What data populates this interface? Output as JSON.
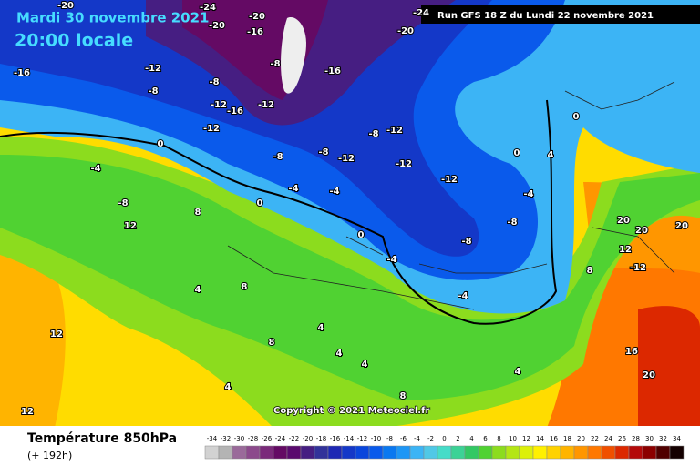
{
  "header": {
    "date": "Mardi 30 novembre 2021",
    "time": "20:00 locale",
    "run": "Run GFS 18 Z du Lundi 22 novembre 2021"
  },
  "copyright": "Copyright © 2021 Meteociel.fr",
  "legend": {
    "title": "Température 850hPa",
    "lead": "(+ 192h)",
    "scale": [
      -34,
      -32,
      -30,
      -28,
      -26,
      -24,
      -22,
      -20,
      -18,
      -16,
      -14,
      -12,
      -10,
      -8,
      -6,
      -4,
      -2,
      0,
      2,
      4,
      6,
      8,
      10,
      12,
      14,
      16,
      18,
      20,
      22,
      24,
      26,
      28,
      30,
      32,
      34
    ],
    "colors": [
      "#d2d2d2",
      "#b4b4b4",
      "#9a6a9a",
      "#8c4a8c",
      "#7a2a7a",
      "#640a64",
      "#5a0a6e",
      "#461e82",
      "#32329a",
      "#1e28b4",
      "#1438c8",
      "#0a46dc",
      "#0a5aeb",
      "#0a78f0",
      "#1e96f5",
      "#3cb4f5",
      "#50c8e6",
      "#46dcc8",
      "#3cd296",
      "#32c864",
      "#50d232",
      "#8cdc1e",
      "#b4e614",
      "#dcf00a",
      "#fff000",
      "#ffd200",
      "#ffb400",
      "#ff9600",
      "#ff7800",
      "#f05000",
      "#dc2800",
      "#b40a0a",
      "#8c0000",
      "#500000",
      "#140000"
    ]
  },
  "map_labels": [
    -20,
    -24,
    -20,
    -20,
    -16,
    -20,
    -24,
    -16,
    -12,
    -8,
    -8,
    -12,
    -16,
    -12,
    -8,
    -16,
    -8,
    -12,
    -8,
    -8,
    -12,
    -12,
    -12,
    -12,
    0,
    -4,
    -8,
    12,
    8,
    0,
    -4,
    -4,
    0,
    -8,
    -8,
    0,
    0,
    4,
    -4,
    20,
    20,
    20,
    12,
    -12,
    8,
    4,
    8,
    4,
    8,
    4,
    4,
    4,
    8,
    12,
    12,
    4,
    20,
    16,
    -4,
    -4
  ]
}
